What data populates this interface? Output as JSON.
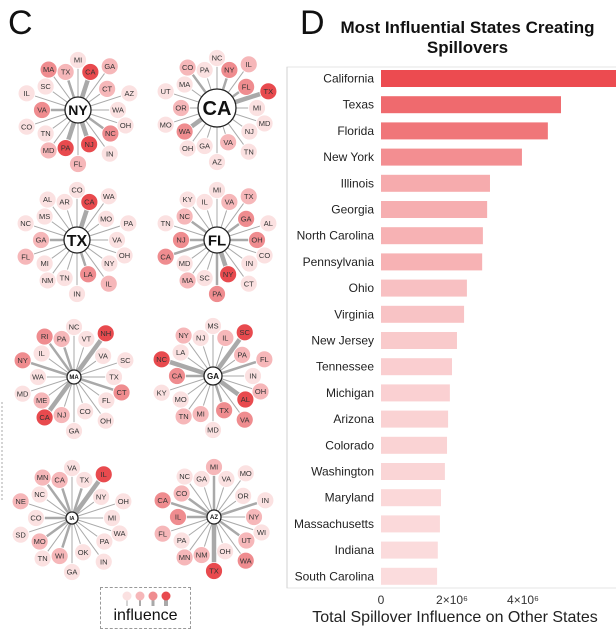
{
  "panel_c_label": "C",
  "panel_d_label": "D",
  "legend": {
    "label": "influence"
  },
  "colors": {
    "level1": "#fbe1e1",
    "level2": "#f6b7b9",
    "level3": "#ef8c8f",
    "level4": "#e84a4e",
    "edge": "#a9a9a9",
    "bar_max": "#ec4b50",
    "bar_min": "#fbdcdd"
  },
  "networks": [
    {
      "hub": "NY",
      "neighbors": [
        [
          "MI",
          1,
          1
        ],
        [
          "CA",
          4,
          3
        ],
        [
          "GA",
          2,
          1
        ],
        [
          "CT",
          2,
          1
        ],
        [
          "AZ",
          1,
          1
        ],
        [
          "WA",
          1,
          1
        ],
        [
          "OH",
          1,
          1
        ],
        [
          "NC",
          3,
          2
        ],
        [
          "IN",
          1,
          1
        ],
        [
          "NJ",
          4,
          3
        ],
        [
          "FL",
          2,
          1
        ],
        [
          "PA",
          4,
          3
        ],
        [
          "MD",
          2,
          1
        ],
        [
          "TN",
          1,
          1
        ],
        [
          "CO",
          1,
          1
        ],
        [
          "VA",
          3,
          2
        ],
        [
          "IL",
          1,
          1
        ],
        [
          "SC",
          1,
          1
        ],
        [
          "MA",
          3,
          1
        ],
        [
          "TX",
          2,
          2
        ]
      ]
    },
    {
      "hub": "CA",
      "neighbors": [
        [
          "NC",
          1,
          1
        ],
        [
          "NY",
          3,
          2
        ],
        [
          "IL",
          2,
          1
        ],
        [
          "FL",
          3,
          2
        ],
        [
          "TX",
          4,
          3
        ],
        [
          "MI",
          1,
          1
        ],
        [
          "MD",
          1,
          1
        ],
        [
          "NJ",
          1,
          1
        ],
        [
          "TN",
          1,
          1
        ],
        [
          "VA",
          2,
          1
        ],
        [
          "AZ",
          1,
          1
        ],
        [
          "GA",
          1,
          1
        ],
        [
          "OH",
          1,
          1
        ],
        [
          "WA",
          3,
          3
        ],
        [
          "MO",
          1,
          1
        ],
        [
          "OR",
          2,
          1
        ],
        [
          "UT",
          1,
          1
        ],
        [
          "MA",
          1,
          1
        ],
        [
          "CO",
          2,
          2
        ],
        [
          "PA",
          1,
          1
        ]
      ]
    },
    {
      "hub": "TX",
      "neighbors": [
        [
          "CO",
          1,
          1
        ],
        [
          "CA",
          4,
          3
        ],
        [
          "WA",
          1,
          1
        ],
        [
          "MO",
          1,
          1
        ],
        [
          "PA",
          1,
          1
        ],
        [
          "VA",
          1,
          1
        ],
        [
          "OH",
          1,
          1
        ],
        [
          "NY",
          1,
          1
        ],
        [
          "IL",
          2,
          1
        ],
        [
          "LA",
          3,
          2
        ],
        [
          "IN",
          1,
          1
        ],
        [
          "TN",
          1,
          1
        ],
        [
          "NM",
          1,
          1
        ],
        [
          "MI",
          1,
          1
        ],
        [
          "FL",
          2,
          1
        ],
        [
          "GA",
          2,
          2
        ],
        [
          "NC",
          1,
          1
        ],
        [
          "MS",
          1,
          1
        ],
        [
          "AL",
          1,
          1
        ],
        [
          "AR",
          1,
          1
        ]
      ]
    },
    {
      "hub": "FL",
      "neighbors": [
        [
          "MI",
          1,
          1
        ],
        [
          "VA",
          2,
          1
        ],
        [
          "TX",
          2,
          1
        ],
        [
          "GA",
          3,
          2
        ],
        [
          "AL",
          1,
          1
        ],
        [
          "OH",
          3,
          2
        ],
        [
          "CO",
          1,
          1
        ],
        [
          "IN",
          1,
          1
        ],
        [
          "CT",
          1,
          1
        ],
        [
          "NY",
          4,
          3
        ],
        [
          "PA",
          3,
          2
        ],
        [
          "SC",
          1,
          1
        ],
        [
          "MA",
          2,
          1
        ],
        [
          "MD",
          1,
          1
        ],
        [
          "CA",
          3,
          2
        ],
        [
          "NJ",
          3,
          2
        ],
        [
          "TN",
          1,
          1
        ],
        [
          "NC",
          2,
          2
        ],
        [
          "KY",
          1,
          1
        ],
        [
          "IL",
          1,
          1
        ]
      ]
    },
    {
      "hub": "MA",
      "neighbors": [
        [
          "NC",
          1,
          1
        ],
        [
          "VT",
          1,
          1
        ],
        [
          "NH",
          4,
          3
        ],
        [
          "VA",
          1,
          1
        ],
        [
          "SC",
          1,
          1
        ],
        [
          "TX",
          1,
          1
        ],
        [
          "CT",
          3,
          2
        ],
        [
          "FL",
          1,
          1
        ],
        [
          "OH",
          1,
          1
        ],
        [
          "CO",
          1,
          1
        ],
        [
          "GA",
          1,
          1
        ],
        [
          "NJ",
          2,
          1
        ],
        [
          "CA",
          4,
          3
        ],
        [
          "ME",
          2,
          1
        ],
        [
          "MD",
          1,
          1
        ],
        [
          "WA",
          1,
          1
        ],
        [
          "NY",
          3,
          2
        ],
        [
          "IL",
          1,
          1
        ],
        [
          "RI",
          3,
          2
        ],
        [
          "PA",
          2,
          2
        ]
      ]
    },
    {
      "hub": "GA",
      "neighbors": [
        [
          "MS",
          1,
          1
        ],
        [
          "IL",
          2,
          1
        ],
        [
          "SC",
          4,
          3
        ],
        [
          "PA",
          2,
          1
        ],
        [
          "FL",
          2,
          2
        ],
        [
          "IN",
          1,
          1
        ],
        [
          "OH",
          2,
          1
        ],
        [
          "AL",
          4,
          3
        ],
        [
          "VA",
          3,
          1
        ],
        [
          "TX",
          3,
          2
        ],
        [
          "MD",
          1,
          1
        ],
        [
          "MI",
          2,
          1
        ],
        [
          "TN",
          2,
          1
        ],
        [
          "MO",
          1,
          1
        ],
        [
          "KY",
          1,
          1
        ],
        [
          "CA",
          3,
          2
        ],
        [
          "NC",
          4,
          3
        ],
        [
          "LA",
          1,
          1
        ],
        [
          "NY",
          2,
          1
        ],
        [
          "NJ",
          1,
          1
        ]
      ]
    },
    {
      "hub": "IA",
      "neighbors": [
        [
          "VA",
          1,
          1
        ],
        [
          "TX",
          1,
          2
        ],
        [
          "IL",
          4,
          3
        ],
        [
          "NY",
          1,
          1
        ],
        [
          "OH",
          1,
          1
        ],
        [
          "MI",
          1,
          1
        ],
        [
          "WA",
          1,
          1
        ],
        [
          "PA",
          1,
          1
        ],
        [
          "IN",
          1,
          1
        ],
        [
          "OK",
          1,
          1
        ],
        [
          "GA",
          1,
          1
        ],
        [
          "WI",
          2,
          2
        ],
        [
          "TN",
          1,
          1
        ],
        [
          "MO",
          2,
          2
        ],
        [
          "SD",
          1,
          1
        ],
        [
          "CO",
          1,
          2
        ],
        [
          "NE",
          2,
          1
        ],
        [
          "NC",
          1,
          1
        ],
        [
          "MN",
          2,
          2
        ],
        [
          "CA",
          2,
          2
        ]
      ]
    },
    {
      "hub": "AZ",
      "neighbors": [
        [
          "MI",
          2,
          2
        ],
        [
          "VA",
          1,
          1
        ],
        [
          "MO",
          1,
          1
        ],
        [
          "OR",
          1,
          1
        ],
        [
          "IN",
          1,
          2
        ],
        [
          "NY",
          2,
          1
        ],
        [
          "WI",
          1,
          1
        ],
        [
          "UT",
          2,
          2
        ],
        [
          "WA",
          3,
          1
        ],
        [
          "OH",
          1,
          1
        ],
        [
          "TX",
          4,
          3
        ],
        [
          "NM",
          2,
          1
        ],
        [
          "MN",
          2,
          1
        ],
        [
          "PA",
          1,
          1
        ],
        [
          "FL",
          2,
          1
        ],
        [
          "IL",
          3,
          2
        ],
        [
          "CA",
          3,
          2
        ],
        [
          "CO",
          2,
          2
        ],
        [
          "NC",
          1,
          1
        ],
        [
          "GA",
          1,
          1
        ]
      ]
    }
  ],
  "chart_data": {
    "type": "bar",
    "orientation": "horizontal",
    "title": "Most Influential States Creating Spillovers",
    "xlabel": "Total Spillover Influence on Other States",
    "ylabel": "",
    "xlim": [
      0,
      6000000
    ],
    "xticks": [
      {
        "value": 0,
        "label": "0"
      },
      {
        "value": 2000000,
        "label": "2×10⁶"
      },
      {
        "value": 4000000,
        "label": "4×10⁶"
      }
    ],
    "categories": [
      "California",
      "Texas",
      "Florida",
      "New York",
      "Illinois",
      "Georgia",
      "North Carolina",
      "Pennsylvania",
      "Ohio",
      "Virginia",
      "New Jersey",
      "Tennessee",
      "Michigan",
      "Arizona",
      "Colorado",
      "Washington",
      "Maryland",
      "Massachusetts",
      "Indiana",
      "South Carolina"
    ],
    "values": [
      6000000,
      5070000,
      4700000,
      3970000,
      3070000,
      2990000,
      2870000,
      2850000,
      2420000,
      2340000,
      2140000,
      2000000,
      1940000,
      1890000,
      1860000,
      1800000,
      1690000,
      1660000,
      1600000,
      1580000
    ]
  }
}
